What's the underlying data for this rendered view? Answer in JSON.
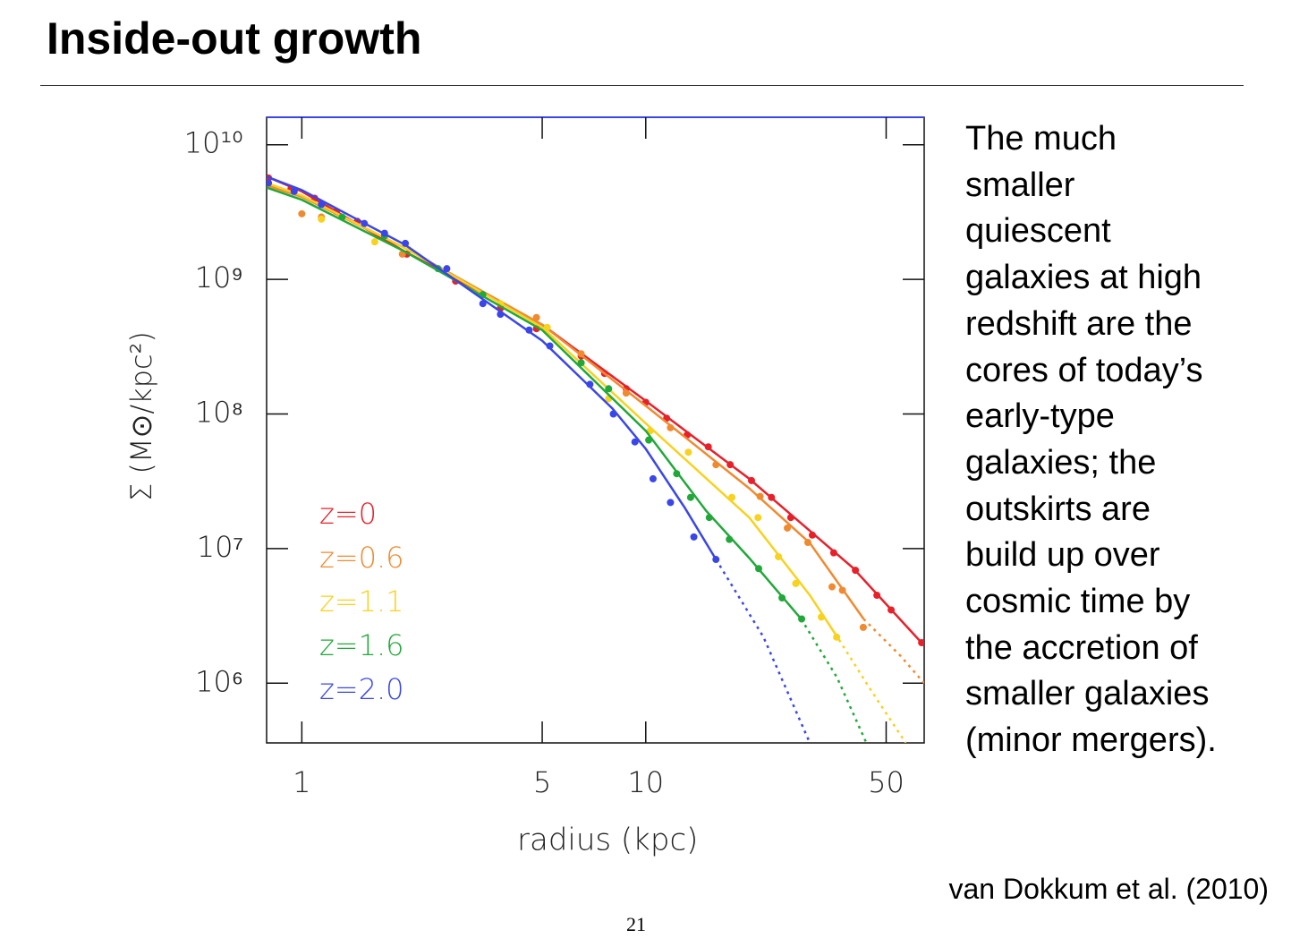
{
  "title": "Inside-out growth",
  "body": [
    "The much",
    "smaller",
    "quiescent",
    "galaxies at high",
    "redshift are the",
    "cores of today’s",
    "early-type",
    "galaxies; the",
    "outskirts are",
    "build up over",
    "cosmic time by",
    "the accretion of",
    "smaller galaxies",
    "(minor mergers)."
  ],
  "citation": "van Dokkum et al. (2010)",
  "page_number": "21",
  "chart_data": {
    "type": "scatter",
    "x_label": "radius (kpc)",
    "y_label": "Σ (M⊙/kpc²)",
    "xscale": "log",
    "yscale": "log",
    "xlim": [
      0.79,
      64.5
    ],
    "ylim": [
      360000,
      16000000000
    ],
    "xticks": [
      1,
      5,
      10,
      50
    ],
    "yticks": [
      {
        "value": 10000000000,
        "label": "10¹⁰"
      },
      {
        "value": 1000000000,
        "label": "10⁹"
      },
      {
        "value": 100000000,
        "label": "10⁸"
      },
      {
        "value": 10000000,
        "label": "10⁷"
      },
      {
        "value": 1000000,
        "label": "10⁶"
      }
    ],
    "series": [
      {
        "name": "z=0",
        "color": "#e8202a",
        "x": [
          0.8,
          0.93,
          1.09,
          1.26,
          1.45,
          2.02,
          2.8,
          3.78,
          4.81,
          6.49,
          7.59,
          8.77,
          10,
          11.5,
          13.2,
          15.2,
          17.6,
          20.3,
          23.2,
          26.4,
          30.5,
          35.2,
          40.7,
          47,
          51.7,
          63.4
        ],
        "values": [
          5660000000,
          4700000000,
          4000000000,
          3200000000,
          2700000000,
          1540000000,
          970000000,
          610000000,
          430000000,
          270000000,
          200000000,
          154000000,
          122000000,
          93000000,
          70000000,
          57000000,
          42000000,
          32000000,
          24000000,
          17000000,
          12600000,
          9300000,
          6900000,
          4500000,
          3500000,
          2000000
        ],
        "fit": {
          "x": [
            0.79,
            1,
            2,
            5,
            10,
            20,
            40,
            64.5
          ],
          "values": [
            5800000000,
            4500000000,
            1600000000,
            460000000,
            125000000,
            33000000,
            7200000,
            1900000
          ]
        }
      },
      {
        "name": "z=0.6",
        "color": "#f08a30",
        "x": [
          1,
          1.14,
          1.96,
          4.81,
          6.49,
          8.77,
          11.8,
          16,
          21.5,
          25.8,
          29.6,
          34.8,
          37.3,
          42.9
        ],
        "values": [
          3070000000,
          2900000000,
          1540000000,
          520000000,
          280000000,
          143000000,
          79000000,
          42000000,
          24400000,
          14200000,
          11100000,
          5200000,
          4900000,
          2600000
        ],
        "fit": {
          "x": [
            0.79,
            1,
            2,
            5,
            10,
            20,
            30,
            43
          ],
          "values": [
            5000000000,
            4100000000,
            1700000000,
            460000000,
            115000000,
            28000000,
            11000000,
            3000000
          ]
        },
        "extrapolation": {
          "x": [
            43,
            55,
            64.5
          ],
          "values": [
            3000000,
            1600000,
            1000000
          ]
        }
      },
      {
        "name": "z=1.1",
        "color": "#f7d21e",
        "x": [
          1.14,
          1.63,
          3.78,
          5.17,
          7.8,
          10.3,
          13.3,
          17.8,
          21.2,
          24.3,
          27.3,
          32.4,
          35.9
        ],
        "values": [
          2800000000,
          1900000000,
          660000000,
          440000000,
          130000000,
          75000000,
          52000000,
          24000000,
          17000000,
          8700000,
          5500000,
          3100000,
          2200000
        ],
        "fit": {
          "x": [
            0.79,
            1,
            2,
            5,
            10,
            20,
            30,
            36.5
          ],
          "values": [
            5200000000,
            4200000000,
            1700000000,
            440000000,
            85000000,
            17000000,
            4500000,
            2100000
          ]
        },
        "extrapolation": {
          "x": [
            36.5,
            45,
            57
          ],
          "values": [
            2100000,
            900000,
            360000
          ]
        }
      },
      {
        "name": "z=1.6",
        "color": "#22a83a",
        "x": [
          1.31,
          1.74,
          2.49,
          3.36,
          6.49,
          7.8,
          10.2,
          12.3,
          13.5,
          15.3,
          17.5,
          21.3,
          24.9,
          28.4
        ],
        "values": [
          2900000000,
          2100000000,
          1200000000,
          770000000,
          240000000,
          154000000,
          64000000,
          36000000,
          24000000,
          17000000,
          11700000,
          7100000,
          4300000,
          3000000
        ],
        "fit": {
          "x": [
            0.79,
            1,
            2,
            5,
            10,
            15,
            20,
            28.3
          ],
          "values": [
            4800000000,
            3900000000,
            1600000000,
            420000000,
            75000000,
            19000000,
            8500000,
            3000000
          ]
        },
        "extrapolation": {
          "x": [
            28.3,
            36,
            43.8
          ],
          "values": [
            3000000,
            1100000,
            360000
          ]
        }
      },
      {
        "name": "z=2.0",
        "color": "#3a46e8",
        "x": [
          0.8,
          0.95,
          1.14,
          1.52,
          1.74,
          2,
          2.64,
          3.36,
          3.78,
          4.58,
          5.26,
          6.88,
          8.05,
          9.3,
          10.5,
          11.8,
          13.8,
          16
        ],
        "values": [
          5200000000,
          4500000000,
          3600000000,
          2600000000,
          2200000000,
          1850000000,
          1200000000,
          660000000,
          550000000,
          420000000,
          320000000,
          166000000,
          100000000,
          62000000,
          33000000,
          22000000,
          12200000,
          8300000
        ],
        "fit": {
          "x": [
            0.79,
            1,
            2,
            5,
            8,
            10,
            13,
            16
          ],
          "values": [
            5800000000,
            4600000000,
            1800000000,
            350000000,
            110000000,
            55000000,
            20000000,
            8300000
          ]
        },
        "extrapolation": {
          "x": [
            16,
            22,
            30
          ],
          "values": [
            8300000,
            2200000,
            360000
          ]
        }
      }
    ]
  }
}
